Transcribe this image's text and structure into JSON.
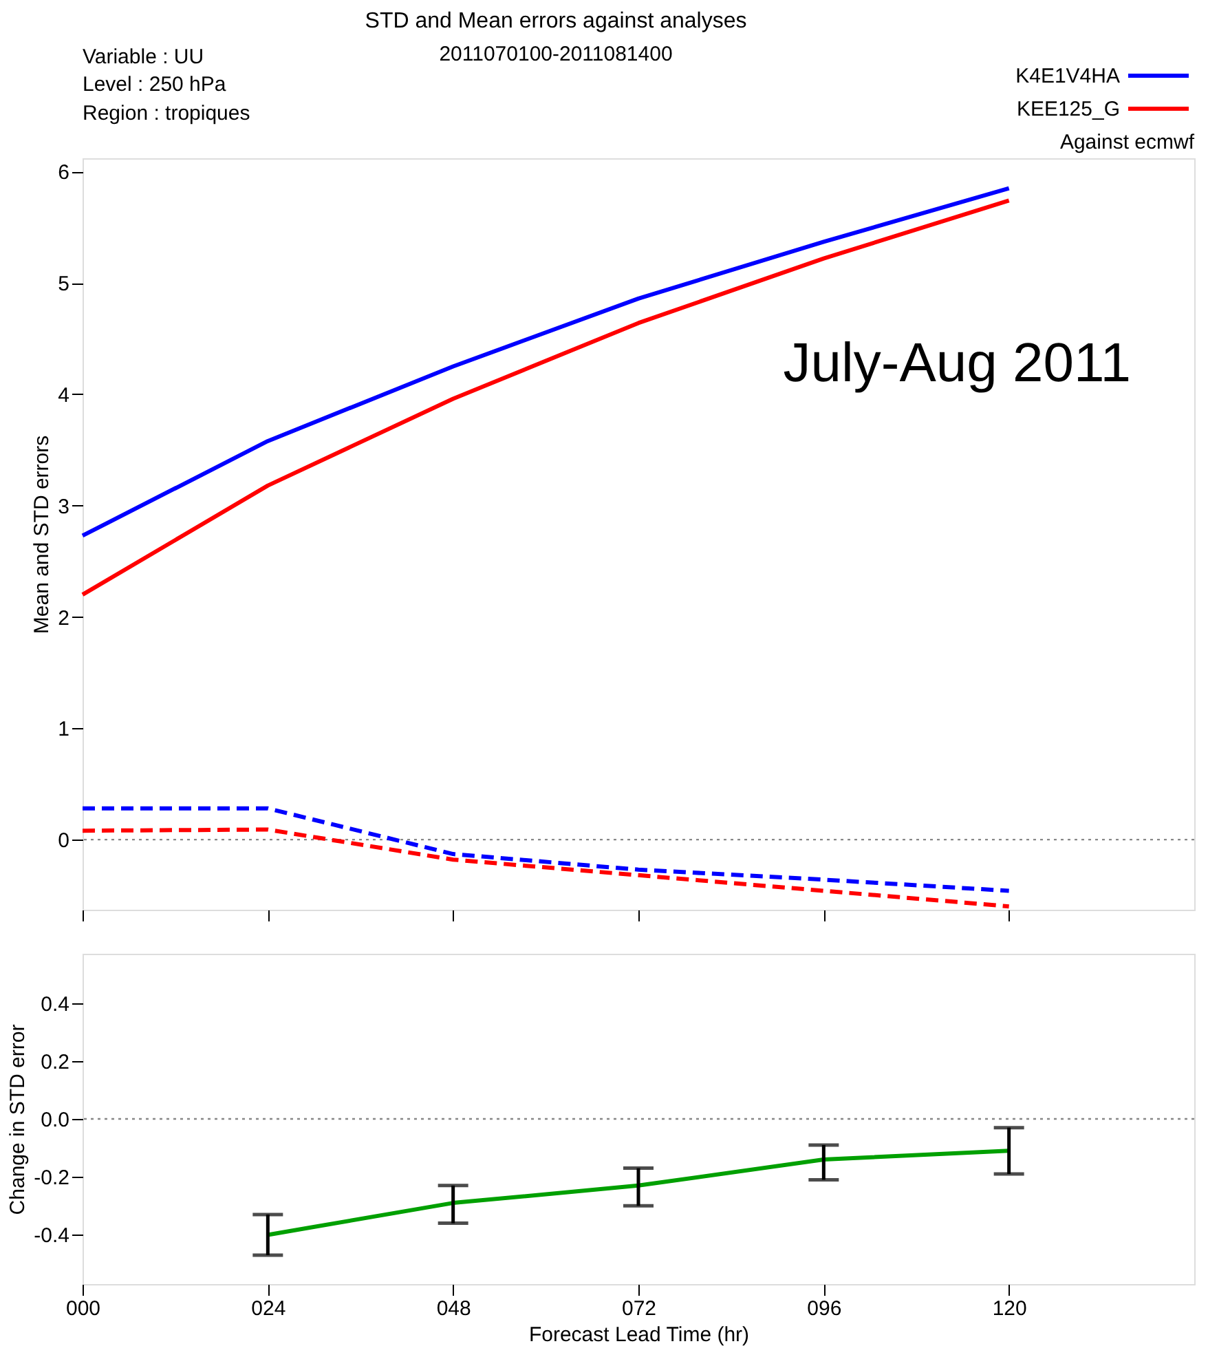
{
  "chart_data": [
    {
      "type": "line",
      "title": "STD and Mean errors against analyses",
      "subtitle": "2011070100-2011081400",
      "ylabel": "Mean and STD errors",
      "annotations": [
        "Variable : UU",
        "Level : 250 hPa",
        "Region : tropiques",
        "Against ecmwf",
        "July-Aug 2011"
      ],
      "x": [
        0,
        24,
        48,
        72,
        96,
        120
      ],
      "series": [
        {
          "name": "K4E1V4HA",
          "color": "#0000ff",
          "line_style": "solid",
          "values": [
            2.73,
            3.58,
            4.25,
            4.86,
            5.37,
            5.85
          ]
        },
        {
          "name": "KEE125_G",
          "color": "#ff0000",
          "line_style": "solid",
          "values": [
            2.2,
            3.18,
            3.96,
            4.64,
            5.22,
            5.74
          ]
        },
        {
          "color": "#0000ff",
          "line_style": "dashed",
          "values": [
            0.28,
            0.28,
            -0.13,
            -0.27,
            -0.36,
            -0.46
          ]
        },
        {
          "color": "#ff0000",
          "line_style": "dashed",
          "values": [
            0.08,
            0.09,
            -0.18,
            -0.32,
            -0.46,
            -0.6
          ]
        }
      ],
      "xlim": [
        0,
        144
      ],
      "ylim": [
        -0.63,
        6.12
      ],
      "xticks": [
        {
          "value": 0,
          "label": null
        },
        {
          "value": 24,
          "label": null
        },
        {
          "value": 48,
          "label": null
        },
        {
          "value": 72,
          "label": null
        },
        {
          "value": 96,
          "label": null
        },
        {
          "value": 120,
          "label": null
        }
      ],
      "yticks": [
        0,
        1,
        2,
        3,
        4,
        5,
        6
      ],
      "tick_labels": "y",
      "legend": "top right",
      "marker": "none",
      "grid": false,
      "ref_lines": [
        {
          "axis": "y",
          "value": 0,
          "color": "#888888",
          "line_style": "dotted"
        }
      ]
    },
    {
      "type": "line",
      "xlabel": "Forecast Lead Time (hr)",
      "ylabel": "Change in STD error",
      "x": [
        24,
        48,
        72,
        96,
        120
      ],
      "series": [
        {
          "color": "#00a000",
          "line_style": "solid",
          "values": [
            -0.4,
            -0.29,
            -0.23,
            -0.14,
            -0.11
          ],
          "errors": [
            [
              -0.47,
              -0.33
            ],
            [
              -0.36,
              -0.23
            ],
            [
              -0.3,
              -0.17
            ],
            [
              -0.21,
              -0.09
            ],
            [
              -0.19,
              -0.03
            ]
          ]
        }
      ],
      "xlim": [
        0,
        144
      ],
      "ylim": [
        -0.57,
        0.57
      ],
      "xticks": [
        {
          "value": 0,
          "label": "000"
        },
        {
          "value": 24,
          "label": "024"
        },
        {
          "value": 48,
          "label": "048"
        },
        {
          "value": 72,
          "label": "072"
        },
        {
          "value": 96,
          "label": "096"
        },
        120
      ],
      "yticks": [
        -0.4,
        -0.2,
        {
          "value": 0,
          "label": "0.0"
        },
        0.2,
        0.4
      ],
      "marker": "none",
      "grid": false,
      "legend": false,
      "ref_lines": [
        {
          "axis": "y",
          "value": 0,
          "color": "#888888",
          "line_style": "dotted"
        }
      ]
    }
  ]
}
